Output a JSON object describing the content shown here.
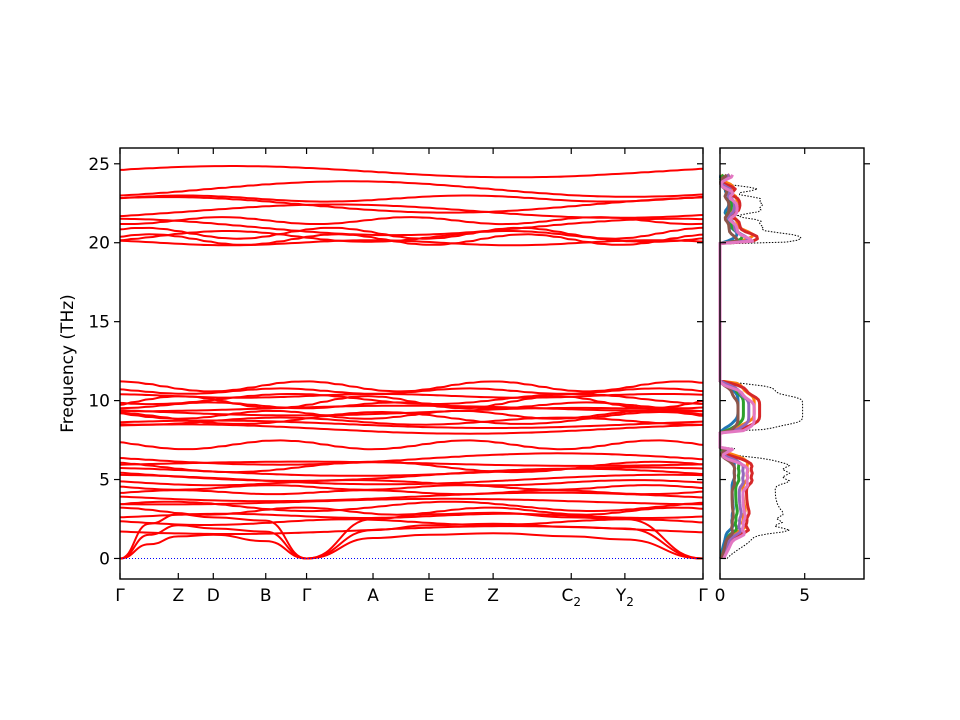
{
  "chart_data": [
    {
      "type": "line",
      "title": "",
      "xlabel": "",
      "ylabel": "Frequency (THz)",
      "ylim": [
        -1.3,
        26
      ],
      "yticks": [
        0,
        5,
        10,
        15,
        20,
        25
      ],
      "ytick_labels": [
        "0",
        "5",
        "10",
        "15",
        "20",
        "25"
      ],
      "kpoints": [
        {
          "label": "Γ",
          "sub": "",
          "pos": 0.0
        },
        {
          "label": "Z",
          "sub": "",
          "pos": 0.5
        },
        {
          "label": "D",
          "sub": "",
          "pos": 0.8
        },
        {
          "label": "B",
          "sub": "",
          "pos": 1.25
        },
        {
          "label": "Γ",
          "sub": "",
          "pos": 1.6
        },
        {
          "label": "A",
          "sub": "",
          "pos": 2.17
        },
        {
          "label": "E",
          "sub": "",
          "pos": 2.65
        },
        {
          "label": "Z",
          "sub": "",
          "pos": 3.2
        },
        {
          "label": "C",
          "sub": "2",
          "pos": 3.87
        },
        {
          "label": "Y",
          "sub": "2",
          "pos": 4.33
        },
        {
          "label": "Γ",
          "sub": "",
          "pos": 5.0
        }
      ],
      "xlim": [
        0,
        5.0
      ],
      "band_color": "#ff0000",
      "zero_line_color": "#0000ff",
      "acoustic_branches": [
        [
          [
            0,
            0
          ],
          [
            0.25,
            0.9
          ],
          [
            0.5,
            1.4
          ],
          [
            0.8,
            1.5
          ],
          [
            1.25,
            1.1
          ],
          [
            1.6,
            0
          ],
          [
            2.17,
            1.3
          ],
          [
            2.65,
            1.5
          ],
          [
            3.2,
            1.6
          ],
          [
            3.87,
            1.4
          ],
          [
            4.33,
            1.2
          ],
          [
            5.0,
            0
          ]
        ],
        [
          [
            0,
            0
          ],
          [
            0.25,
            1.5
          ],
          [
            0.5,
            2.1
          ],
          [
            0.8,
            1.9
          ],
          [
            1.25,
            1.7
          ],
          [
            1.6,
            0
          ],
          [
            2.17,
            1.8
          ],
          [
            2.65,
            2.1
          ],
          [
            3.2,
            2.2
          ],
          [
            3.87,
            2.0
          ],
          [
            4.33,
            1.9
          ],
          [
            5.0,
            0
          ]
        ],
        [
          [
            0,
            0
          ],
          [
            0.25,
            2.2
          ],
          [
            0.5,
            2.8
          ],
          [
            0.8,
            2.6
          ],
          [
            1.25,
            2.4
          ],
          [
            1.6,
            0
          ],
          [
            2.17,
            2.5
          ],
          [
            2.65,
            2.8
          ],
          [
            3.2,
            2.9
          ],
          [
            3.87,
            2.6
          ],
          [
            4.33,
            2.5
          ],
          [
            5.0,
            0
          ]
        ]
      ],
      "optical_bands": {
        "group1": {
          "base": [
            1.8,
            2.3,
            2.7,
            3.0,
            3.3,
            3.6,
            3.9,
            4.2,
            4.5,
            4.8,
            5.0,
            5.3,
            5.5,
            5.8,
            6.0,
            6.3,
            7.2
          ]
        },
        "group2": {
          "base": [
            8.2,
            8.5,
            8.7,
            8.9,
            9.1,
            9.3,
            9.5,
            9.7,
            9.9,
            10.1,
            10.3,
            10.6,
            10.9
          ]
        },
        "group3": {
          "base": [
            20.0,
            20.2,
            20.4,
            20.6,
            21.0,
            21.4,
            22.0,
            22.4,
            22.8,
            23.4,
            24.5
          ]
        }
      },
      "dos": {
        "xlim": [
          0,
          8.5
        ],
        "xticks": [
          0,
          5
        ],
        "xtick_labels": [
          "0",
          "5"
        ],
        "partial_colors": [
          "#1f77b4",
          "#ff7f0e",
          "#2ca02c",
          "#d62728",
          "#9467bd",
          "#8c564b",
          "#e377c2"
        ],
        "total_color": "#000000"
      }
    }
  ]
}
